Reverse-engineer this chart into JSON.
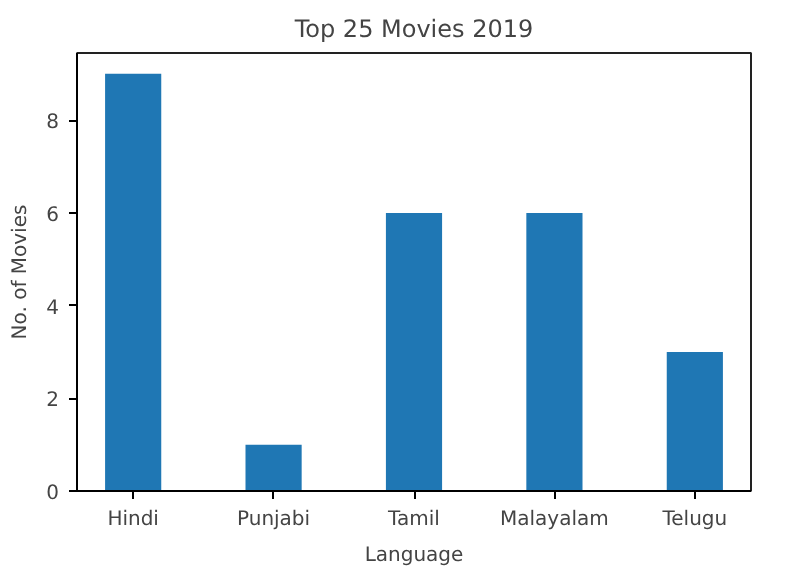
{
  "chart_data": {
    "type": "bar",
    "title": "Top 25 Movies 2019",
    "xlabel": "Language",
    "ylabel": "No. of Movies",
    "categories": [
      "Hindi",
      "Punjabi",
      "Tamil",
      "Malayalam",
      "Telugu"
    ],
    "values": [
      9,
      1,
      6,
      6,
      3
    ],
    "color": "#1f77b4",
    "ylim": [
      0,
      9.45
    ],
    "yticks": [
      0,
      2,
      4,
      6,
      8
    ],
    "grid": false
  }
}
